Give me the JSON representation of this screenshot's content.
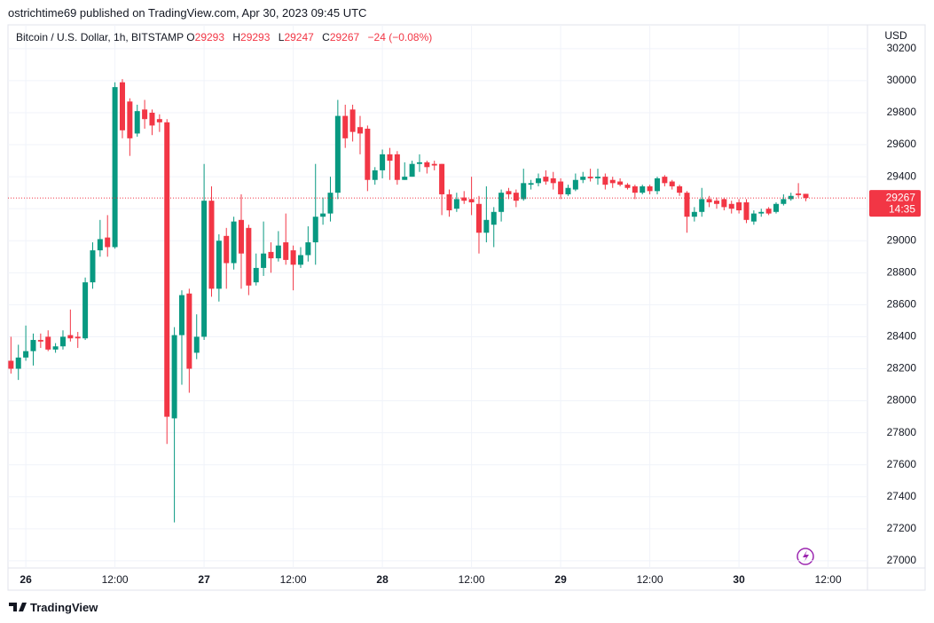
{
  "publisher": "ostrichtime69 published on TradingView.com, Apr 30, 2023 09:45 UTC",
  "brand": "TradingView",
  "chart_data": {
    "type": "candlestick",
    "symbol": "Bitcoin / U.S. Dollar, 1h, BITSTAMP",
    "ohlc_labels": [
      "O",
      "H",
      "L",
      "C"
    ],
    "change": "−24 (−0.08%)",
    "currency": "USD",
    "countdown": "14:35",
    "up_color": "#089981",
    "down_color": "#f23645",
    "grid": true,
    "x": [
      -2,
      -1,
      0,
      1,
      2,
      3,
      4,
      5,
      6,
      7,
      8,
      9,
      10,
      11,
      12,
      13,
      14,
      15,
      16,
      17,
      18,
      19,
      20,
      21,
      22,
      23,
      24,
      25,
      26,
      27,
      28,
      29,
      30,
      31,
      32,
      33,
      34,
      35,
      36,
      37,
      38,
      39,
      40,
      41,
      42,
      43,
      44,
      45,
      46,
      47,
      48,
      49,
      50,
      51,
      52,
      53,
      54,
      55,
      56,
      57,
      58,
      59,
      60,
      61,
      62,
      63,
      64,
      65,
      66,
      67,
      68,
      69,
      70,
      71,
      72,
      73,
      74,
      75,
      76,
      77,
      78,
      79,
      80,
      81,
      82,
      83,
      84,
      85,
      86,
      87,
      88,
      89,
      90,
      91,
      92,
      93,
      94,
      95,
      96,
      97,
      98,
      99,
      100,
      101,
      102,
      103,
      104,
      105
    ],
    "open": [
      28250,
      28200,
      28270,
      28310,
      28380,
      28400,
      28320,
      28340,
      28410,
      28400,
      28390,
      28740,
      28940,
      29020,
      28960,
      29990,
      29870,
      29670,
      29820,
      29800,
      29760,
      29740,
      27890,
      28410,
      28670,
      28300,
      28400,
      29250,
      28700,
      29030,
      28860,
      29130,
      29080,
      28740,
      28830,
      28930,
      28890,
      28990,
      28940,
      28850,
      28910,
      28990,
      29150,
      29170,
      29300,
      29780,
      29820,
      29710,
      29700,
      29380,
      29440,
      29540,
      29540,
      29380,
      29400,
      29480,
      29490,
      29480,
      29480,
      29290,
      29200,
      29270,
      29260,
      29230,
      29050,
      29100,
      29180,
      29310,
      29300,
      29260,
      29350,
      29360,
      29400,
      29390,
      29370,
      29290,
      29320,
      29380,
      29400,
      29390,
      29400,
      29380,
      29370,
      29350,
      29340,
      29300,
      29340,
      29310,
      29400,
      29370,
      29340,
      29300,
      29150,
      29180,
      29260,
      29250,
      29260,
      29230,
      29240,
      29240,
      29120,
      29170,
      29200,
      29180,
      29230,
      29260,
      29295,
      29293
    ],
    "high": [
      28400,
      28350,
      28470,
      28420,
      28420,
      28440,
      28360,
      28440,
      28570,
      28430,
      28770,
      28990,
      29130,
      29160,
      29990,
      30010,
      29890,
      29850,
      29880,
      29820,
      29790,
      29760,
      28460,
      28690,
      28700,
      28540,
      29480,
      29340,
      29040,
      29080,
      29150,
      29290,
      29100,
      28920,
      29120,
      28990,
      29060,
      29170,
      28970,
      28960,
      29090,
      29480,
      29270,
      29400,
      29880,
      29850,
      29850,
      29780,
      29720,
      29460,
      29570,
      29580,
      29560,
      29490,
      29500,
      29540,
      29500,
      29500,
      29480,
      29320,
      29300,
      29310,
      29400,
      29280,
      29340,
      29210,
      29320,
      29330,
      29320,
      29450,
      29380,
      29420,
      29440,
      29430,
      29390,
      29350,
      29420,
      29430,
      29450,
      29450,
      29420,
      29400,
      29390,
      29360,
      29350,
      29350,
      29350,
      29400,
      29410,
      29380,
      29350,
      29310,
      29210,
      29330,
      29280,
      29270,
      29270,
      29250,
      29260,
      29260,
      29190,
      29200,
      29210,
      29240,
      29290,
      29300,
      29360,
      29293
    ],
    "low": [
      28170,
      28130,
      28250,
      28220,
      28330,
      28310,
      28300,
      28320,
      28370,
      28330,
      28380,
      28700,
      28900,
      28900,
      28950,
      29640,
      29530,
      29650,
      29700,
      29660,
      29680,
      27730,
      27240,
      28100,
      28050,
      28260,
      28380,
      28650,
      28620,
      28700,
      28820,
      28700,
      28660,
      28720,
      28780,
      28800,
      28870,
      28850,
      28690,
      28830,
      28870,
      28850,
      29100,
      29120,
      29260,
      29580,
      29620,
      29540,
      29310,
      29350,
      29390,
      29380,
      29350,
      29380,
      29400,
      29430,
      29420,
      29440,
      29160,
      29150,
      29180,
      29230,
      29160,
      28920,
      28990,
      28960,
      29120,
      29260,
      29210,
      29250,
      29320,
      29340,
      29350,
      29320,
      29260,
      29280,
      29310,
      29360,
      29370,
      29350,
      29320,
      29330,
      29340,
      29320,
      29260,
      29290,
      29290,
      29290,
      29340,
      29320,
      29280,
      29050,
      29120,
      29150,
      29210,
      29200,
      29190,
      29170,
      29170,
      29110,
      29100,
      29150,
      29160,
      29170,
      29220,
      29250,
      29270,
      29247
    ],
    "close": [
      28200,
      28270,
      28310,
      28380,
      28370,
      28320,
      28340,
      28400,
      28390,
      28390,
      28740,
      28940,
      29010,
      28960,
      29960,
      29690,
      29640,
      29810,
      29760,
      29720,
      29740,
      27900,
      28410,
      28660,
      28200,
      28400,
      29250,
      28700,
      29000,
      28860,
      29120,
      28920,
      28720,
      28830,
      28920,
      28890,
      28970,
      28880,
      28850,
      28910,
      28990,
      29150,
      29170,
      29300,
      29780,
      29640,
      29680,
      29670,
      29380,
      29440,
      29540,
      29500,
      29380,
      29400,
      29480,
      29490,
      29460,
      29470,
      29290,
      29190,
      29260,
      29250,
      29240,
      29050,
      29130,
      29180,
      29300,
      29290,
      29250,
      29360,
      29360,
      29390,
      29370,
      29360,
      29290,
      29330,
      29380,
      29400,
      29390,
      29400,
      29350,
      29360,
      29350,
      29330,
      29300,
      29340,
      29310,
      29390,
      29360,
      29340,
      29300,
      29150,
      29180,
      29260,
      29240,
      29230,
      29210,
      29200,
      29190,
      29130,
      29170,
      29180,
      29170,
      29230,
      29260,
      29280,
      29285,
      29267
    ],
    "xlim": [
      -2.4,
      113.3
    ],
    "xticks": [
      {
        "value": 0,
        "label": "26"
      },
      {
        "value": 12,
        "label": "12:00"
      },
      {
        "value": 24,
        "label": "27"
      },
      {
        "value": 36,
        "label": "12:00"
      },
      {
        "value": 48,
        "label": "28"
      },
      {
        "value": 60,
        "label": "12:00"
      },
      {
        "value": 72,
        "label": "29"
      },
      {
        "value": 84,
        "label": "12:00"
      },
      {
        "value": 96,
        "label": "30"
      },
      {
        "value": 108,
        "label": "12:00"
      }
    ],
    "ylim": [
      26955,
      30349
    ],
    "yticks": [
      27000,
      27200,
      27400,
      27600,
      27800,
      28000,
      28200,
      28400,
      28600,
      28800,
      29000,
      29200,
      29400,
      29600,
      29800,
      30000,
      30200
    ]
  }
}
